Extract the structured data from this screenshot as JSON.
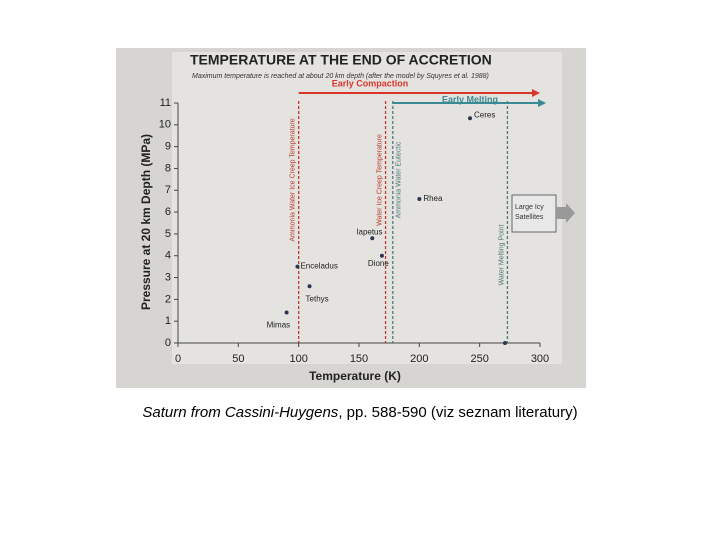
{
  "chart_data": {
    "type": "scatter",
    "title": "TEMPERATURE AT THE END OF ACCRETION",
    "subtitle": "Maximum temperature is reached at about 20 km depth (after the model by Squyres et al. 1988)",
    "x_label": "Temperature (K)",
    "y_label": "Pressure at 20 km Depth (MPa)",
    "xlim": [
      0,
      300
    ],
    "ylim": [
      0,
      11
    ],
    "xticks": [
      0,
      50,
      100,
      150,
      200,
      250,
      300
    ],
    "yticks": [
      0,
      1,
      2,
      3,
      4,
      5,
      6,
      7,
      8,
      9,
      10,
      11
    ],
    "color": "#2a3550",
    "x": [
      90,
      109,
      99,
      169,
      161,
      200,
      242,
      271
    ],
    "values": [
      1.4,
      2.6,
      3.5,
      4.0,
      4.8,
      6.6,
      10.3,
      0
    ],
    "point_labels": [
      "Mimas",
      "Tethys",
      "Enceladus",
      "Dione",
      "Iapetus",
      "Rhea",
      "Ceres",
      null
    ],
    "reference_lines": [
      {
        "label": "Ammonia Water Ice Creep Temperature",
        "x": 100,
        "color": "#c0392b"
      },
      {
        "label": "Water Ice Creep Temperature",
        "x": 172,
        "color": "#c0392b"
      },
      {
        "label": "Ammonia Water Eutectic",
        "x": 178,
        "color": "#4f7a78"
      },
      {
        "label": "Water Melting Point",
        "x": 273,
        "color": "#4f7a78"
      }
    ],
    "arrows": [
      {
        "label": "Early Compaction",
        "x_start": 100,
        "x_end": 300,
        "color": "#d9352a"
      },
      {
        "label": "Early Melting",
        "x_start": 178,
        "x_end": 305,
        "color": "#3a8a94"
      }
    ],
    "box_label": "Large Icy Satellites",
    "caption_italic": "Saturn from Cassini-Huygens",
    "caption_rest": ", pp. 588-590 (viz seznam literatury)"
  }
}
